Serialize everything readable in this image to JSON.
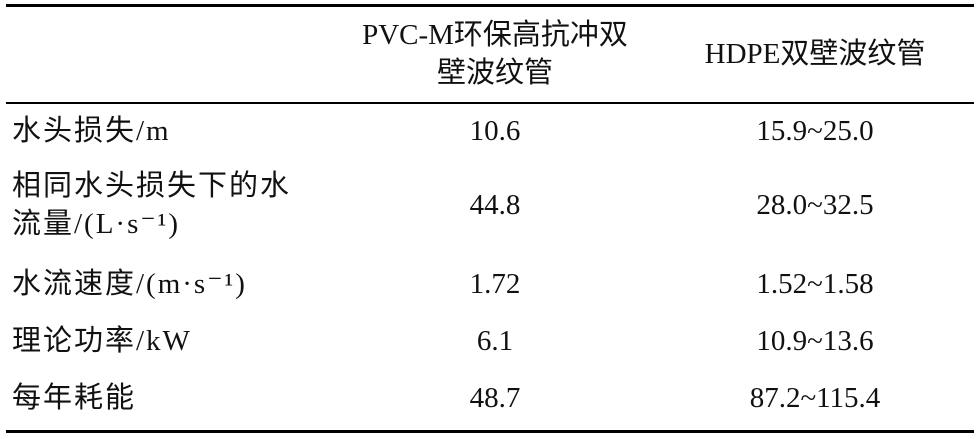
{
  "table": {
    "header": [
      [],
      [
        "PVC-M环保高抗冲双",
        "壁波纹管"
      ],
      [
        "HDPE双壁波纹管"
      ]
    ],
    "rows": [
      [
        [
          "水头损失/m"
        ],
        [
          "10.6"
        ],
        [
          "15.9~25.0"
        ]
      ],
      [
        [
          "相同水头损失下的水",
          "流量/(L·s⁻¹)"
        ],
        [
          "44.8"
        ],
        [
          "28.0~32.5"
        ]
      ],
      [
        [
          "水流速度/(m·s⁻¹)"
        ],
        [
          "1.72"
        ],
        [
          "1.52~1.58"
        ]
      ],
      [
        [
          "理论功率/kW"
        ],
        [
          "6.1"
        ],
        [
          "10.9~13.6"
        ]
      ],
      [
        [
          "每年耗能"
        ],
        [
          "48.7"
        ],
        [
          "87.2~115.4"
        ]
      ]
    ]
  }
}
